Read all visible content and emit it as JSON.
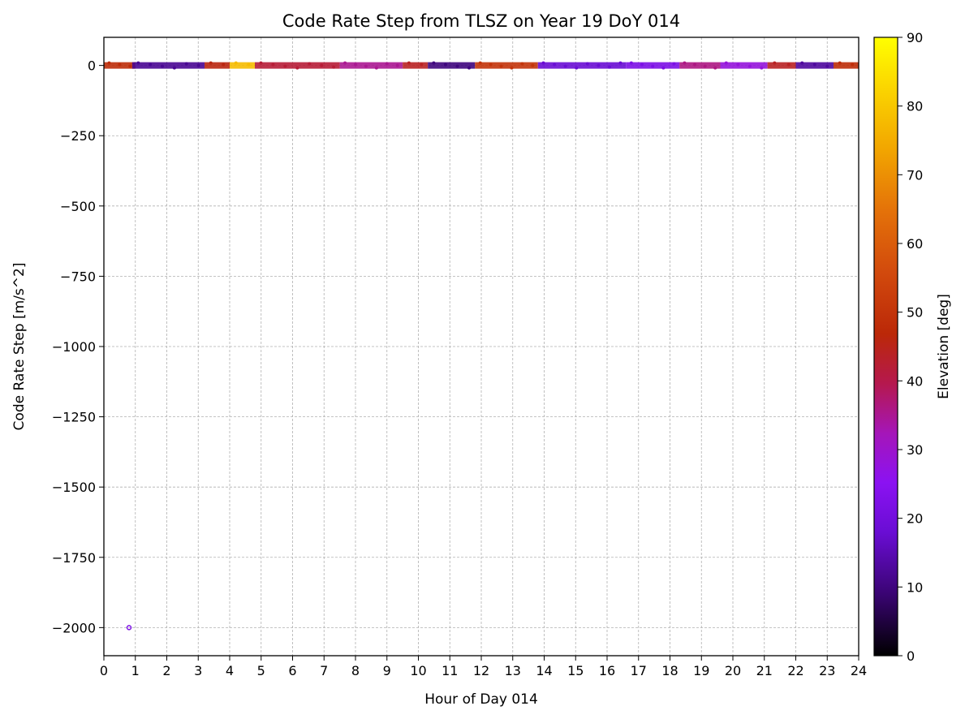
{
  "chart_data": {
    "type": "scatter",
    "title": "Code Rate Step from TLSZ on Year 19 DoY 014",
    "xlabel": "Hour of Day 014",
    "ylabel": "Code Rate Step [m/s^2]",
    "xlim": [
      0,
      24
    ],
    "ylim": [
      -2100,
      100
    ],
    "xticks": [
      0,
      1,
      2,
      3,
      4,
      5,
      6,
      7,
      8,
      9,
      10,
      11,
      12,
      13,
      14,
      15,
      16,
      17,
      18,
      19,
      20,
      21,
      22,
      23,
      24
    ],
    "xtick_labels": [
      "0",
      "1",
      "2",
      "3",
      "4",
      "5",
      "6",
      "7",
      "8",
      "9",
      "10",
      "11",
      "12",
      "13",
      "14",
      "15",
      "16",
      "17",
      "18",
      "19",
      "20",
      "21",
      "22",
      "23",
      "24"
    ],
    "yticks": [
      0,
      -250,
      -500,
      -750,
      -1000,
      -1250,
      -1500,
      -1750,
      -2000
    ],
    "ytick_labels": [
      "0",
      "−250",
      "−500",
      "−750",
      "−1000",
      "−1250",
      "−1500",
      "−1750",
      "−2000"
    ],
    "grid": true,
    "colorbar": {
      "label": "Elevation [deg]",
      "colormap": "gnuplot",
      "range": [
        0,
        90
      ],
      "ticks": [
        0,
        10,
        20,
        30,
        40,
        50,
        60,
        70,
        80,
        90
      ],
      "tick_labels": [
        "0",
        "10",
        "20",
        "30",
        "40",
        "50",
        "60",
        "70",
        "80",
        "90"
      ]
    },
    "segments": [
      {
        "x_start": 0.0,
        "x_end": 1.0,
        "elevation": 48
      },
      {
        "x_start": 0.9,
        "x_end": 3.2,
        "elevation": 12
      },
      {
        "x_start": 3.2,
        "x_end": 4.0,
        "elevation": 46
      },
      {
        "x_start": 4.0,
        "x_end": 4.8,
        "elevation": 78
      },
      {
        "x_start": 4.8,
        "x_end": 7.5,
        "elevation": 42
      },
      {
        "x_start": 7.5,
        "x_end": 9.5,
        "elevation": 35
      },
      {
        "x_start": 9.5,
        "x_end": 10.3,
        "elevation": 44
      },
      {
        "x_start": 10.3,
        "x_end": 11.8,
        "elevation": 10
      },
      {
        "x_start": 11.8,
        "x_end": 13.8,
        "elevation": 50
      },
      {
        "x_start": 13.8,
        "x_end": 16.6,
        "elevation": 18
      },
      {
        "x_start": 16.6,
        "x_end": 18.3,
        "elevation": 22
      },
      {
        "x_start": 18.3,
        "x_end": 19.6,
        "elevation": 36
      },
      {
        "x_start": 19.6,
        "x_end": 21.1,
        "elevation": 28
      },
      {
        "x_start": 21.1,
        "x_end": 22.0,
        "elevation": 44
      },
      {
        "x_start": 22.0,
        "x_end": 23.2,
        "elevation": 13
      },
      {
        "x_start": 23.2,
        "x_end": 24.0,
        "elevation": 48
      }
    ],
    "points": [
      {
        "x": 0.8,
        "y": -2000,
        "elevation": 22
      }
    ]
  }
}
